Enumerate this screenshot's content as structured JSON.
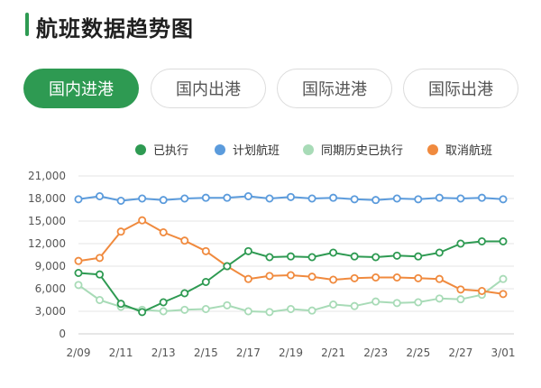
{
  "header": {
    "title": "航班数据趋势图"
  },
  "tabs": [
    {
      "label": "国内进港",
      "active": true
    },
    {
      "label": "国内出港",
      "active": false
    },
    {
      "label": "国际进港",
      "active": false
    },
    {
      "label": "国际出港",
      "active": false
    }
  ],
  "colors": {
    "accent": "#2e9a52",
    "executed": "#2e9a52",
    "planned": "#5b9bdc",
    "history": "#a8dbb7",
    "cancelled": "#f08a3e"
  },
  "chart_data": {
    "type": "line",
    "x": [
      "2/09",
      "2/10",
      "2/11",
      "2/12",
      "2/13",
      "2/14",
      "2/15",
      "2/16",
      "2/17",
      "2/18",
      "2/19",
      "2/20",
      "2/21",
      "2/22",
      "2/23",
      "2/24",
      "2/25",
      "2/26",
      "2/27",
      "2/28",
      "3/01"
    ],
    "x_tick_labels": [
      "2/09",
      "2/11",
      "2/13",
      "2/15",
      "2/17",
      "2/19",
      "2/21",
      "2/23",
      "2/25",
      "2/27",
      "3/01"
    ],
    "ylim": [
      0,
      21000
    ],
    "y_ticks": [
      "0",
      "3,000",
      "6,000",
      "9,000",
      "12,000",
      "15,000",
      "18,000",
      "21,000"
    ],
    "y_tick_values": [
      0,
      3000,
      6000,
      9000,
      12000,
      15000,
      18000,
      21000
    ],
    "grid": true,
    "legend_position": "top-right",
    "series": [
      {
        "name": "已执行",
        "color": "#2e9a52",
        "values": [
          8100,
          7900,
          4000,
          2900,
          4200,
          5400,
          6900,
          9000,
          11000,
          10200,
          10300,
          10200,
          10800,
          10300,
          10200,
          10400,
          10300,
          10800,
          12000,
          12300,
          12300
        ]
      },
      {
        "name": "计划航班",
        "color": "#5b9bdc",
        "values": [
          17900,
          18300,
          17700,
          18000,
          17800,
          18000,
          18100,
          18100,
          18300,
          18000,
          18200,
          18000,
          18100,
          17900,
          17800,
          18000,
          17900,
          18100,
          18000,
          18100,
          17900
        ]
      },
      {
        "name": "同期历史已执行",
        "color": "#a8dbb7",
        "values": [
          6500,
          4500,
          3600,
          3200,
          3000,
          3200,
          3300,
          3800,
          3000,
          2900,
          3300,
          3100,
          3900,
          3700,
          4300,
          4100,
          4200,
          4700,
          4600,
          5200,
          7300
        ]
      },
      {
        "name": "取消航班",
        "color": "#f08a3e",
        "values": [
          9700,
          10100,
          13600,
          15100,
          13500,
          12400,
          11000,
          9000,
          7300,
          7700,
          7800,
          7600,
          7200,
          7400,
          7500,
          7500,
          7400,
          7300,
          5900,
          5700,
          5300
        ]
      }
    ]
  }
}
